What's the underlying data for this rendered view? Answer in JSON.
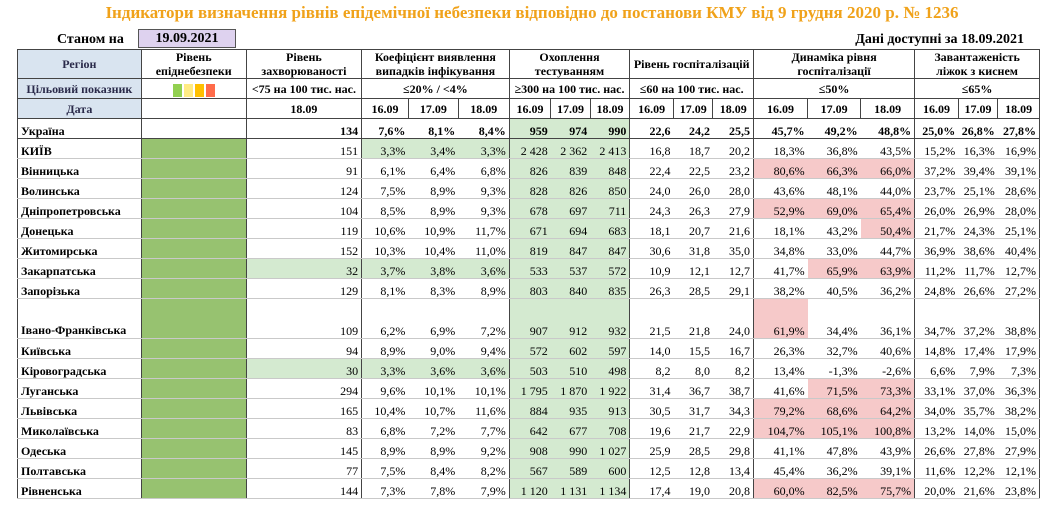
{
  "title": "Індикатори визначення рівнів епідемічної небезпеки відповідно до постанови КМУ від 9 грудня 2020 р. № 1236",
  "as_of_label": "Станом на",
  "as_of_date": "19.09.2021",
  "available_label": "Дані доступні за 18.09.2021",
  "headers": {
    "region": "Регіон",
    "level": "Рівень епіднебезпеки",
    "incidence": "Рівень захворюваності",
    "detection": "Коефіцієнт виявлення випадків інфікування",
    "testing": "Охоплення тестуванням",
    "hosp": "Рівень госпіталізацій",
    "hosp_dyn": "Динаміка рівня госпіталізації",
    "oxygen": "Завантаженість ліжок з киснем"
  },
  "target_row": {
    "label": "Цільовий показник",
    "incidence": "<75 на 100 тис. нас.",
    "detection": "≤20% / <4%",
    "testing": "≥300 на 100 тис. нас.",
    "hosp": "≤60 на 100 тис. нас.",
    "hosp_dyn": "≤50%",
    "oxygen": "≤65%"
  },
  "level_colors": [
    "#92d050",
    "#ffeb84",
    "#ffc000",
    "#ff6b4a"
  ],
  "date_row": {
    "label": "Дата",
    "incidence": "18.09",
    "three": [
      "16.09",
      "17.09",
      "18.09"
    ]
  },
  "rows": [
    {
      "region": "Україна",
      "lvl": false,
      "inc": "134",
      "incG": false,
      "det": [
        "7,6%",
        "8,1%",
        "8,4%"
      ],
      "detG": false,
      "test": [
        "959",
        "974",
        "990"
      ],
      "testG": true,
      "hosp": [
        "22,6",
        "24,2",
        "25,5"
      ],
      "dyn": [
        "45,7%",
        "49,2%",
        "48,8%"
      ],
      "dynR": [
        false,
        false,
        false
      ],
      "oxy": [
        "25,0%",
        "26,8%",
        "27,8%"
      ],
      "ukr": true
    },
    {
      "region": "КИЇВ",
      "lvl": true,
      "inc": "151",
      "incG": false,
      "det": [
        "3,3%",
        "3,4%",
        "3,3%"
      ],
      "detG": true,
      "test": [
        "2 428",
        "2 362",
        "2 413"
      ],
      "testG": true,
      "hosp": [
        "16,8",
        "18,7",
        "20,2"
      ],
      "dyn": [
        "18,3%",
        "36,8%",
        "43,5%"
      ],
      "dynR": [
        false,
        false,
        false
      ],
      "oxy": [
        "15,2%",
        "16,3%",
        "16,9%"
      ]
    },
    {
      "region": "Вінницька",
      "lvl": true,
      "inc": "91",
      "incG": false,
      "det": [
        "6,1%",
        "6,4%",
        "6,8%"
      ],
      "detG": false,
      "test": [
        "826",
        "839",
        "848"
      ],
      "testG": true,
      "hosp": [
        "22,4",
        "22,5",
        "23,2"
      ],
      "dyn": [
        "80,6%",
        "66,3%",
        "66,0%"
      ],
      "dynR": [
        true,
        true,
        true
      ],
      "oxy": [
        "37,2%",
        "39,4%",
        "39,1%"
      ]
    },
    {
      "region": "Волинська",
      "lvl": true,
      "inc": "124",
      "incG": false,
      "det": [
        "7,5%",
        "8,9%",
        "9,3%"
      ],
      "detG": false,
      "test": [
        "828",
        "826",
        "850"
      ],
      "testG": true,
      "hosp": [
        "24,0",
        "26,0",
        "28,0"
      ],
      "dyn": [
        "43,6%",
        "48,1%",
        "44,0%"
      ],
      "dynR": [
        false,
        false,
        false
      ],
      "oxy": [
        "23,7%",
        "25,1%",
        "28,6%"
      ]
    },
    {
      "region": "Дніпропетровська",
      "lvl": true,
      "inc": "104",
      "incG": false,
      "det": [
        "8,5%",
        "8,9%",
        "9,3%"
      ],
      "detG": false,
      "test": [
        "678",
        "697",
        "711"
      ],
      "testG": true,
      "hosp": [
        "24,3",
        "26,3",
        "27,9"
      ],
      "dyn": [
        "52,9%",
        "69,0%",
        "65,4%"
      ],
      "dynR": [
        true,
        true,
        true
      ],
      "oxy": [
        "26,0%",
        "26,9%",
        "28,0%"
      ]
    },
    {
      "region": "Донецька",
      "lvl": true,
      "inc": "119",
      "incG": false,
      "det": [
        "10,6%",
        "10,9%",
        "11,7%"
      ],
      "detG": false,
      "test": [
        "671",
        "694",
        "683"
      ],
      "testG": true,
      "hosp": [
        "18,1",
        "20,7",
        "21,6"
      ],
      "dyn": [
        "18,1%",
        "43,2%",
        "50,4%"
      ],
      "dynR": [
        false,
        false,
        true
      ],
      "oxy": [
        "21,7%",
        "24,3%",
        "25,1%"
      ]
    },
    {
      "region": "Житомирська",
      "lvl": true,
      "inc": "152",
      "incG": false,
      "det": [
        "10,3%",
        "10,4%",
        "11,0%"
      ],
      "detG": false,
      "test": [
        "819",
        "847",
        "847"
      ],
      "testG": true,
      "hosp": [
        "30,6",
        "31,8",
        "35,0"
      ],
      "dyn": [
        "34,8%",
        "33,0%",
        "44,7%"
      ],
      "dynR": [
        false,
        false,
        false
      ],
      "oxy": [
        "36,9%",
        "38,6%",
        "40,4%"
      ]
    },
    {
      "region": "Закарпатська",
      "lvl": true,
      "inc": "32",
      "incG": true,
      "det": [
        "3,7%",
        "3,8%",
        "3,6%"
      ],
      "detG": true,
      "test": [
        "533",
        "537",
        "572"
      ],
      "testG": true,
      "hosp": [
        "10,9",
        "12,1",
        "12,7"
      ],
      "dyn": [
        "41,7%",
        "65,9%",
        "63,9%"
      ],
      "dynR": [
        false,
        true,
        true
      ],
      "oxy": [
        "11,2%",
        "11,7%",
        "12,7%"
      ]
    },
    {
      "region": "Запорізька",
      "lvl": true,
      "inc": "129",
      "incG": false,
      "det": [
        "8,1%",
        "8,3%",
        "8,9%"
      ],
      "detG": false,
      "test": [
        "803",
        "840",
        "835"
      ],
      "testG": true,
      "hosp": [
        "26,3",
        "28,5",
        "29,1"
      ],
      "dyn": [
        "38,2%",
        "40,5%",
        "36,2%"
      ],
      "dynR": [
        false,
        false,
        false
      ],
      "oxy": [
        "24,8%",
        "26,6%",
        "27,2%"
      ]
    },
    {
      "region": "Івано-Франківська",
      "lvl": true,
      "inc": "109",
      "incG": false,
      "det": [
        "6,2%",
        "6,9%",
        "7,2%"
      ],
      "detG": false,
      "test": [
        "907",
        "912",
        "932"
      ],
      "testG": true,
      "hosp": [
        "21,5",
        "21,8",
        "24,0"
      ],
      "dyn": [
        "61,9%",
        "34,4%",
        "36,1%"
      ],
      "dynR": [
        true,
        false,
        false
      ],
      "oxy": [
        "34,7%",
        "37,2%",
        "38,8%"
      ],
      "tall": true
    },
    {
      "region": "Київська",
      "lvl": true,
      "inc": "94",
      "incG": false,
      "det": [
        "8,9%",
        "9,0%",
        "9,4%"
      ],
      "detG": false,
      "test": [
        "572",
        "602",
        "597"
      ],
      "testG": true,
      "hosp": [
        "14,0",
        "15,5",
        "16,7"
      ],
      "dyn": [
        "26,3%",
        "32,7%",
        "40,6%"
      ],
      "dynR": [
        false,
        false,
        false
      ],
      "oxy": [
        "14,8%",
        "17,4%",
        "17,9%"
      ]
    },
    {
      "region": "Кіровоградська",
      "lvl": true,
      "inc": "30",
      "incG": true,
      "det": [
        "3,3%",
        "3,6%",
        "3,6%"
      ],
      "detG": true,
      "test": [
        "503",
        "510",
        "498"
      ],
      "testG": true,
      "hosp": [
        "8,2",
        "8,0",
        "8,2"
      ],
      "dyn": [
        "13,4%",
        "-1,3%",
        "-2,6%"
      ],
      "dynR": [
        false,
        false,
        false
      ],
      "oxy": [
        "6,6%",
        "7,9%",
        "7,3%"
      ]
    },
    {
      "region": "Луганська",
      "lvl": true,
      "inc": "294",
      "incG": false,
      "det": [
        "9,6%",
        "10,1%",
        "10,1%"
      ],
      "detG": false,
      "test": [
        "1 795",
        "1 870",
        "1 922"
      ],
      "testG": true,
      "hosp": [
        "31,4",
        "36,7",
        "38,7"
      ],
      "dyn": [
        "41,6%",
        "71,5%",
        "73,3%"
      ],
      "dynR": [
        false,
        true,
        true
      ],
      "oxy": [
        "33,1%",
        "37,0%",
        "36,3%"
      ]
    },
    {
      "region": "Львівська",
      "lvl": true,
      "inc": "165",
      "incG": false,
      "det": [
        "10,4%",
        "10,7%",
        "11,6%"
      ],
      "detG": false,
      "test": [
        "884",
        "935",
        "913"
      ],
      "testG": true,
      "hosp": [
        "30,5",
        "31,7",
        "34,3"
      ],
      "dyn": [
        "79,2%",
        "68,6%",
        "64,2%"
      ],
      "dynR": [
        true,
        true,
        true
      ],
      "oxy": [
        "34,0%",
        "35,7%",
        "38,2%"
      ]
    },
    {
      "region": "Миколаївська",
      "lvl": true,
      "inc": "83",
      "incG": false,
      "det": [
        "6,8%",
        "7,2%",
        "7,7%"
      ],
      "detG": false,
      "test": [
        "642",
        "677",
        "708"
      ],
      "testG": true,
      "hosp": [
        "19,6",
        "21,7",
        "22,9"
      ],
      "dyn": [
        "104,7%",
        "105,1%",
        "100,8%"
      ],
      "dynR": [
        true,
        true,
        true
      ],
      "oxy": [
        "13,2%",
        "14,0%",
        "15,0%"
      ]
    },
    {
      "region": "Одеська",
      "lvl": true,
      "inc": "145",
      "incG": false,
      "det": [
        "8,9%",
        "8,9%",
        "9,2%"
      ],
      "detG": false,
      "test": [
        "908",
        "990",
        "1 027"
      ],
      "testG": true,
      "hosp": [
        "25,9",
        "28,5",
        "29,8"
      ],
      "dyn": [
        "41,1%",
        "47,8%",
        "43,9%"
      ],
      "dynR": [
        false,
        false,
        false
      ],
      "oxy": [
        "26,6%",
        "27,8%",
        "27,9%"
      ]
    },
    {
      "region": "Полтавська",
      "lvl": true,
      "inc": "77",
      "incG": false,
      "det": [
        "7,5%",
        "8,4%",
        "8,2%"
      ],
      "detG": false,
      "test": [
        "567",
        "589",
        "600"
      ],
      "testG": true,
      "hosp": [
        "12,5",
        "12,8",
        "13,4"
      ],
      "dyn": [
        "45,4%",
        "36,2%",
        "39,1%"
      ],
      "dynR": [
        false,
        false,
        false
      ],
      "oxy": [
        "11,6%",
        "12,2%",
        "12,1%"
      ]
    },
    {
      "region": "Рівненська",
      "lvl": true,
      "inc": "144",
      "incG": false,
      "det": [
        "7,3%",
        "7,8%",
        "7,9%"
      ],
      "detG": false,
      "test": [
        "1 120",
        "1 131",
        "1 134"
      ],
      "testG": true,
      "hosp": [
        "17,4",
        "19,0",
        "20,8"
      ],
      "dyn": [
        "60,0%",
        "82,5%",
        "75,7%"
      ],
      "dynR": [
        true,
        true,
        true
      ],
      "oxy": [
        "20,0%",
        "21,6%",
        "23,8%"
      ]
    }
  ]
}
